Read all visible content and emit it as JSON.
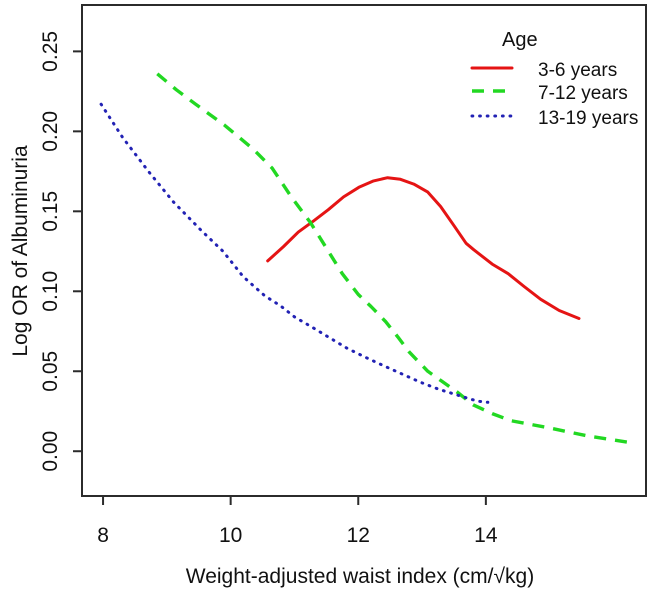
{
  "chart_data": {
    "type": "line",
    "title": "",
    "xlabel": "Weight-adjusted waist index (cm/√kg)",
    "ylabel": "Log OR of Albuminuria",
    "xlim": [
      7.67,
      16.51
    ],
    "ylim": [
      -0.028,
      0.279
    ],
    "grid": false,
    "x_ticks": [
      {
        "v": 8,
        "label": "8"
      },
      {
        "v": 10,
        "label": "10"
      },
      {
        "v": 12,
        "label": "12"
      },
      {
        "v": 14,
        "label": "14"
      }
    ],
    "y_ticks": [
      {
        "v": 0.0,
        "label": "0.00"
      },
      {
        "v": 0.05,
        "label": "0.05"
      },
      {
        "v": 0.1,
        "label": "0.10"
      },
      {
        "v": 0.15,
        "label": "0.15"
      },
      {
        "v": 0.2,
        "label": "0.20"
      },
      {
        "v": 0.25,
        "label": "0.25"
      }
    ],
    "legend": {
      "title": "Age",
      "position": "top-right"
    },
    "series": [
      {
        "name": "3-6 years",
        "color": "#e51414",
        "style": "solid",
        "points": [
          [
            10.58,
            0.119
          ],
          [
            10.83,
            0.128
          ],
          [
            11.06,
            0.137
          ],
          [
            11.3,
            0.144
          ],
          [
            11.53,
            0.151
          ],
          [
            11.77,
            0.159
          ],
          [
            12.01,
            0.165
          ],
          [
            12.24,
            0.169
          ],
          [
            12.46,
            0.171
          ],
          [
            12.66,
            0.17
          ],
          [
            12.87,
            0.167
          ],
          [
            13.09,
            0.162
          ],
          [
            13.29,
            0.153
          ],
          [
            13.5,
            0.141
          ],
          [
            13.69,
            0.13
          ],
          [
            13.81,
            0.126
          ],
          [
            14.1,
            0.117
          ],
          [
            14.35,
            0.111
          ],
          [
            14.6,
            0.103
          ],
          [
            14.86,
            0.095
          ],
          [
            15.15,
            0.088
          ],
          [
            15.46,
            0.083
          ]
        ]
      },
      {
        "name": "7-12 years",
        "color": "#22d822",
        "style": "dashed",
        "points": [
          [
            8.85,
            0.236
          ],
          [
            9.15,
            0.226
          ],
          [
            9.45,
            0.217
          ],
          [
            9.9,
            0.204
          ],
          [
            10.35,
            0.189
          ],
          [
            10.65,
            0.177
          ],
          [
            10.95,
            0.159
          ],
          [
            11.25,
            0.143
          ],
          [
            11.5,
            0.127
          ],
          [
            11.75,
            0.111
          ],
          [
            12.0,
            0.098
          ],
          [
            12.2,
            0.0905
          ],
          [
            12.43,
            0.081
          ],
          [
            12.62,
            0.0715
          ],
          [
            12.8,
            0.062
          ],
          [
            13.09,
            0.05
          ],
          [
            13.3,
            0.044
          ],
          [
            13.55,
            0.037
          ],
          [
            13.8,
            0.029
          ],
          [
            14.1,
            0.0235
          ],
          [
            14.4,
            0.019
          ],
          [
            15.0,
            0.0145
          ],
          [
            15.6,
            0.0095
          ],
          [
            16.25,
            0.0055
          ]
        ]
      },
      {
        "name": "13-19 years",
        "color": "#2222b4",
        "style": "dotted",
        "points": [
          [
            7.97,
            0.217
          ],
          [
            8.31,
            0.196
          ],
          [
            8.71,
            0.175
          ],
          [
            9.1,
            0.156
          ],
          [
            9.54,
            0.138
          ],
          [
            9.88,
            0.125
          ],
          [
            10.2,
            0.109
          ],
          [
            10.54,
            0.097
          ],
          [
            10.78,
            0.091
          ],
          [
            11.0,
            0.084
          ],
          [
            11.28,
            0.0775
          ],
          [
            11.55,
            0.071
          ],
          [
            11.82,
            0.0645
          ],
          [
            12.1,
            0.059
          ],
          [
            12.38,
            0.0538
          ],
          [
            12.7,
            0.048
          ],
          [
            12.98,
            0.043
          ],
          [
            13.26,
            0.0388
          ],
          [
            13.56,
            0.035
          ],
          [
            13.87,
            0.0313
          ],
          [
            14.03,
            0.0306
          ]
        ]
      }
    ]
  }
}
